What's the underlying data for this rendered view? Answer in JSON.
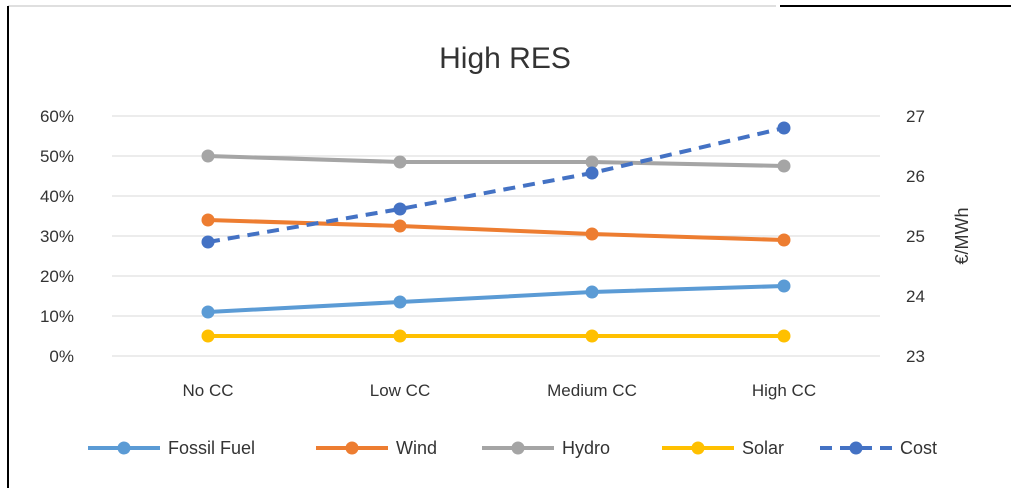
{
  "chart_data": {
    "type": "line",
    "title": "High RES",
    "xlabel": "",
    "ylabel_left": "",
    "ylabel_right": "€/MWh",
    "categories": [
      "No CC",
      "Low CC",
      "Medium CC",
      "High CC"
    ],
    "y_left": {
      "min": 0,
      "max": 60,
      "step": 10,
      "unit": "%",
      "ticks": [
        "0%",
        "10%",
        "20%",
        "30%",
        "40%",
        "50%",
        "60%"
      ]
    },
    "y_right": {
      "min": 23,
      "max": 27,
      "step": 1,
      "ticks": [
        "23",
        "24",
        "25",
        "26",
        "27"
      ]
    },
    "grid": true,
    "legend_position": "bottom",
    "series": [
      {
        "name": "Fossil Fuel",
        "axis": "left",
        "color": "#5b9bd5",
        "dash": "solid",
        "values": [
          11,
          13.5,
          16,
          17.5
        ]
      },
      {
        "name": "Wind",
        "axis": "left",
        "color": "#ed7d31",
        "dash": "solid",
        "values": [
          34,
          32.5,
          30.5,
          29
        ]
      },
      {
        "name": "Hydro",
        "axis": "left",
        "color": "#a5a5a5",
        "dash": "solid",
        "values": [
          50,
          48.5,
          48.5,
          47.5
        ]
      },
      {
        "name": "Solar",
        "axis": "left",
        "color": "#ffc000",
        "dash": "solid",
        "values": [
          5,
          5,
          5,
          5
        ]
      },
      {
        "name": "Cost",
        "axis": "right",
        "color": "#4472c4",
        "dash": "dashed",
        "values": [
          24.9,
          25.45,
          26.05,
          26.8
        ]
      }
    ]
  }
}
